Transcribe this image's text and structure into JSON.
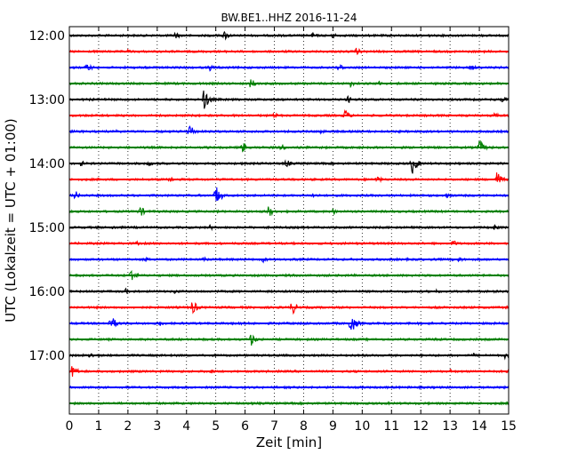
{
  "chart_data": {
    "type": "line",
    "title": "BW.BE1..HHZ 2016-11-24",
    "xlabel": "Zeit  [min]",
    "ylabel": "UTC (Lokalzeit = UTC + 01:00)",
    "xlim": [
      0,
      15
    ],
    "x_ticks": [
      "0",
      "1",
      "2",
      "3",
      "4",
      "5",
      "6",
      "7",
      "8",
      "9",
      "10",
      "11",
      "12",
      "13",
      "14",
      "15"
    ],
    "y_ticks": [
      "12:00",
      "13:00",
      "14:00",
      "15:00",
      "16:00",
      "17:00"
    ],
    "grid": "vertical dotted",
    "trace_colors": [
      "#000000",
      "#ff0000",
      "#0000ff",
      "#008000"
    ],
    "series": [
      {
        "start": "12:00",
        "events": [
          {
            "x": 3.6,
            "amp": 0.35
          },
          {
            "x": 5.3,
            "amp": 0.45
          },
          {
            "x": 8.3,
            "amp": 0.3
          },
          {
            "x": 9.0,
            "amp": 0.3
          },
          {
            "x": 12.2,
            "amp": 0.25
          }
        ]
      },
      {
        "start": "12:15",
        "events": [
          {
            "x": 2.0,
            "amp": 0.2
          },
          {
            "x": 9.8,
            "amp": 0.35
          }
        ]
      },
      {
        "start": "12:30",
        "events": [
          {
            "x": 0.6,
            "amp": 0.45
          },
          {
            "x": 4.8,
            "amp": 0.3
          },
          {
            "x": 9.2,
            "amp": 0.45
          },
          {
            "x": 13.7,
            "amp": 0.3
          }
        ]
      },
      {
        "start": "12:45",
        "events": [
          {
            "x": 6.2,
            "amp": 0.5
          },
          {
            "x": 9.6,
            "amp": 0.3
          },
          {
            "x": 10.6,
            "amp": 0.3
          }
        ]
      },
      {
        "start": "13:00",
        "events": [
          {
            "x": 4.6,
            "amp": 1.0
          },
          {
            "x": 9.5,
            "amp": 0.35
          },
          {
            "x": 14.8,
            "amp": 0.3
          }
        ]
      },
      {
        "start": "13:15",
        "events": [
          {
            "x": 7.0,
            "amp": 0.3
          },
          {
            "x": 9.4,
            "amp": 0.55
          },
          {
            "x": 14.5,
            "amp": 0.3
          }
        ]
      },
      {
        "start": "13:30",
        "events": [
          {
            "x": 1.6,
            "amp": 0.3
          },
          {
            "x": 4.1,
            "amp": 0.75
          },
          {
            "x": 8.6,
            "amp": 0.3
          }
        ]
      },
      {
        "start": "13:45",
        "events": [
          {
            "x": 5.9,
            "amp": 0.55
          },
          {
            "x": 7.2,
            "amp": 0.4
          },
          {
            "x": 14.0,
            "amp": 0.7
          }
        ]
      },
      {
        "start": "14:00",
        "events": [
          {
            "x": 0.4,
            "amp": 0.3
          },
          {
            "x": 2.7,
            "amp": 0.3
          },
          {
            "x": 7.4,
            "amp": 0.4
          },
          {
            "x": 11.7,
            "amp": 1.0
          }
        ]
      },
      {
        "start": "14:15",
        "events": [
          {
            "x": 3.4,
            "amp": 0.3
          },
          {
            "x": 10.5,
            "amp": 0.35
          },
          {
            "x": 14.6,
            "amp": 0.75
          }
        ]
      },
      {
        "start": "14:30",
        "events": [
          {
            "x": 0.2,
            "amp": 0.45
          },
          {
            "x": 5.0,
            "amp": 1.0
          },
          {
            "x": 8.3,
            "amp": 0.35
          },
          {
            "x": 12.9,
            "amp": 0.3
          }
        ]
      },
      {
        "start": "14:45",
        "events": [
          {
            "x": 2.4,
            "amp": 0.55
          },
          {
            "x": 6.8,
            "amp": 0.55
          },
          {
            "x": 9.0,
            "amp": 0.3
          }
        ]
      },
      {
        "start": "15:00",
        "events": [
          {
            "x": 1.5,
            "amp": 0.25
          },
          {
            "x": 4.8,
            "amp": 0.25
          },
          {
            "x": 14.5,
            "amp": 0.3
          }
        ]
      },
      {
        "start": "15:15",
        "events": [
          {
            "x": 2.3,
            "amp": 0.2
          },
          {
            "x": 13.1,
            "amp": 0.35
          }
        ]
      },
      {
        "start": "15:30",
        "events": [
          {
            "x": 2.6,
            "amp": 0.25
          },
          {
            "x": 4.6,
            "amp": 0.25
          },
          {
            "x": 6.6,
            "amp": 0.3
          },
          {
            "x": 13.3,
            "amp": 0.3
          }
        ]
      },
      {
        "start": "15:45",
        "events": [
          {
            "x": 2.1,
            "amp": 0.7
          }
        ]
      },
      {
        "start": "16:00",
        "events": [
          {
            "x": 1.9,
            "amp": 0.3
          },
          {
            "x": 3.6,
            "amp": 0.25
          },
          {
            "x": 12.5,
            "amp": 0.25
          }
        ]
      },
      {
        "start": "16:15",
        "events": [
          {
            "x": 4.2,
            "amp": 0.7
          },
          {
            "x": 7.6,
            "amp": 0.7
          }
        ]
      },
      {
        "start": "16:30",
        "events": [
          {
            "x": 1.4,
            "amp": 0.85
          },
          {
            "x": 3.1,
            "amp": 0.25
          },
          {
            "x": 9.6,
            "amp": 1.0
          }
        ]
      },
      {
        "start": "16:45",
        "events": [
          {
            "x": 6.2,
            "amp": 0.6
          }
        ]
      },
      {
        "start": "17:00",
        "events": [
          {
            "x": 0.7,
            "amp": 0.3
          },
          {
            "x": 13.8,
            "amp": 0.2
          },
          {
            "x": 14.9,
            "amp": 0.45
          }
        ]
      },
      {
        "start": "17:15",
        "events": [
          {
            "x": 0.1,
            "amp": 0.6
          },
          {
            "x": 4.8,
            "amp": 0.25
          },
          {
            "x": 13.0,
            "amp": 0.2
          }
        ]
      },
      {
        "start": "17:30",
        "events": []
      },
      {
        "start": "17:45",
        "events": []
      }
    ]
  }
}
